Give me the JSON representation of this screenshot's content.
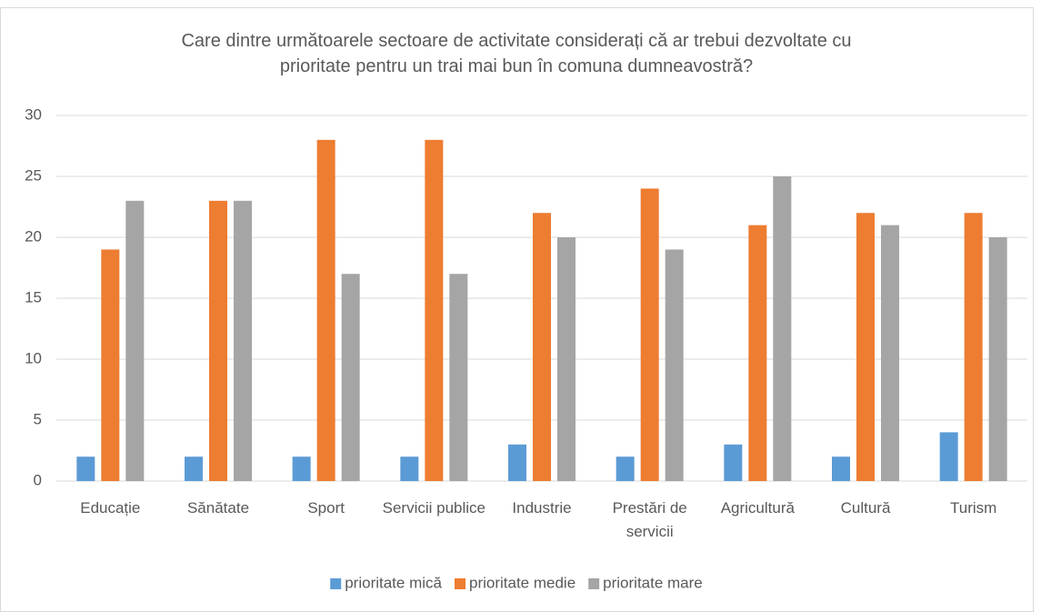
{
  "chart_data": {
    "type": "bar",
    "title": "Care dintre următoarele sectoare de activitate considerați că ar trebui dezvoltate cu prioritate pentru un trai mai bun în comuna dumneavostră?",
    "categories": [
      "Educație",
      "Sănătate",
      "Sport",
      "Servicii publice",
      "Industrie",
      "Prestări de servicii",
      "Agricultură",
      "Cultură",
      "Turism"
    ],
    "series": [
      {
        "name": "prioritate mică",
        "color": "#5b9bd5",
        "values": [
          2,
          2,
          2,
          2,
          3,
          2,
          3,
          2,
          4
        ]
      },
      {
        "name": "prioritate medie",
        "color": "#ed7d31",
        "values": [
          19,
          23,
          28,
          28,
          22,
          24,
          21,
          22,
          22
        ]
      },
      {
        "name": "prioritate mare",
        "color": "#a5a5a5",
        "values": [
          23,
          23,
          17,
          17,
          20,
          19,
          25,
          21,
          20
        ]
      }
    ],
    "ylim": [
      0,
      30
    ],
    "yticks": [
      0,
      5,
      10,
      15,
      20,
      25,
      30
    ],
    "grid": true,
    "legend": "bottom"
  }
}
